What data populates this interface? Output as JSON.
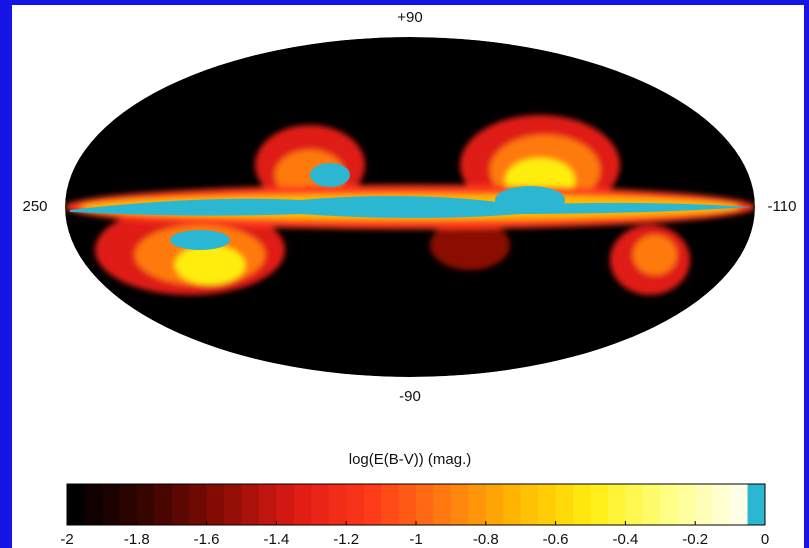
{
  "chart_data": {
    "type": "allsky-map",
    "title": "log(E(B-V)) (mag.)",
    "axis_labels": {
      "top": "+90",
      "bottom": "-90",
      "left": "250",
      "right": "-110"
    },
    "colorbar": {
      "xlim": [
        -2,
        0
      ],
      "xticks": [
        -2,
        -1.8,
        -1.6,
        -1.4,
        -1.2,
        -1,
        -0.8,
        -0.6,
        -0.4,
        -0.2,
        0
      ],
      "colormap": [
        "#000000",
        "#3a0500",
        "#8a0d05",
        "#e01a14",
        "#ff3a1a",
        "#ff7a10",
        "#ffb800",
        "#ffee10",
        "#ffff80",
        "#ffffe8"
      ],
      "top_color": "#2bb6d1"
    }
  }
}
